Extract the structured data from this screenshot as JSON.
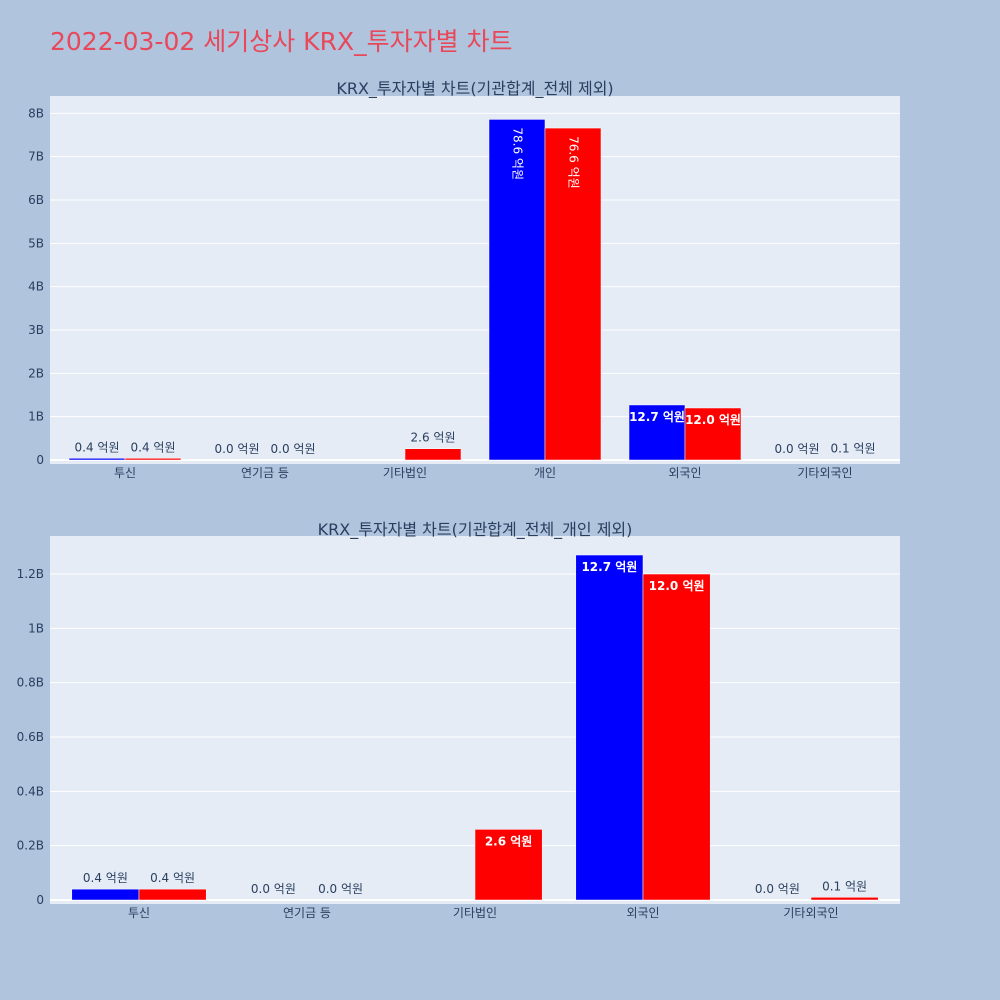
{
  "page": {
    "title": "2022-03-02 세기상사 KRX_투자자별 차트"
  },
  "colors": {
    "background": "#b0c4de",
    "plot_bg": "#e5ecf6",
    "title": "#e8485a",
    "series_blue": "#0000ff",
    "series_red": "#ff0000",
    "text": "#2a3f5f"
  },
  "chart_data": [
    {
      "type": "bar",
      "title": "KRX_투자자별 차트(기관합계_전체 제외)",
      "categories": [
        "투신",
        "연기금 등",
        "기타법인",
        "개인",
        "외국인",
        "기타외국인"
      ],
      "series": [
        {
          "color": "#0000ff",
          "values": [
            40000000,
            0,
            0,
            7860000000,
            1270000000,
            0
          ],
          "labels": [
            "0.4 억원",
            "0.0 억원",
            "",
            "78.6 억원",
            "12.7 억원",
            "0.0 억원"
          ]
        },
        {
          "color": "#ff0000",
          "values": [
            40000000,
            0,
            260000000,
            7660000000,
            1200000000,
            10000000
          ],
          "labels": [
            "0.4 억원",
            "0.0 억원",
            "2.6 억원",
            "76.6 억원",
            "12.0 억원",
            "0.1 억원"
          ]
        }
      ],
      "ylim": [
        0,
        8400000000
      ],
      "yticks": [
        0,
        1000000000,
        2000000000,
        3000000000,
        4000000000,
        5000000000,
        6000000000,
        7000000000,
        8000000000
      ],
      "ytick_labels": [
        "0",
        "1B",
        "2B",
        "3B",
        "4B",
        "5B",
        "6B",
        "7B",
        "8B"
      ],
      "grid": true
    },
    {
      "type": "bar",
      "title": "KRX_투자자별 차트(기관합계_전체_개인 제외)",
      "categories": [
        "투신",
        "연기금 등",
        "기타법인",
        "외국인",
        "기타외국인"
      ],
      "series": [
        {
          "color": "#0000ff",
          "values": [
            40000000,
            0,
            0,
            1270000000,
            0
          ],
          "labels": [
            "0.4 억원",
            "0.0 억원",
            "",
            "12.7 억원",
            "0.0 억원"
          ]
        },
        {
          "color": "#ff0000",
          "values": [
            40000000,
            0,
            260000000,
            1200000000,
            10000000
          ],
          "labels": [
            "0.4 억원",
            "0.0 억원",
            "2.6 억원",
            "12.0 억원",
            "0.1 억원"
          ]
        }
      ],
      "ylim": [
        0,
        1340000000
      ],
      "yticks": [
        0,
        200000000,
        400000000,
        600000000,
        800000000,
        1000000000,
        1200000000
      ],
      "ytick_labels": [
        "0",
        "0.2B",
        "0.4B",
        "0.6B",
        "0.8B",
        "1B",
        "1.2B"
      ],
      "grid": true
    }
  ]
}
